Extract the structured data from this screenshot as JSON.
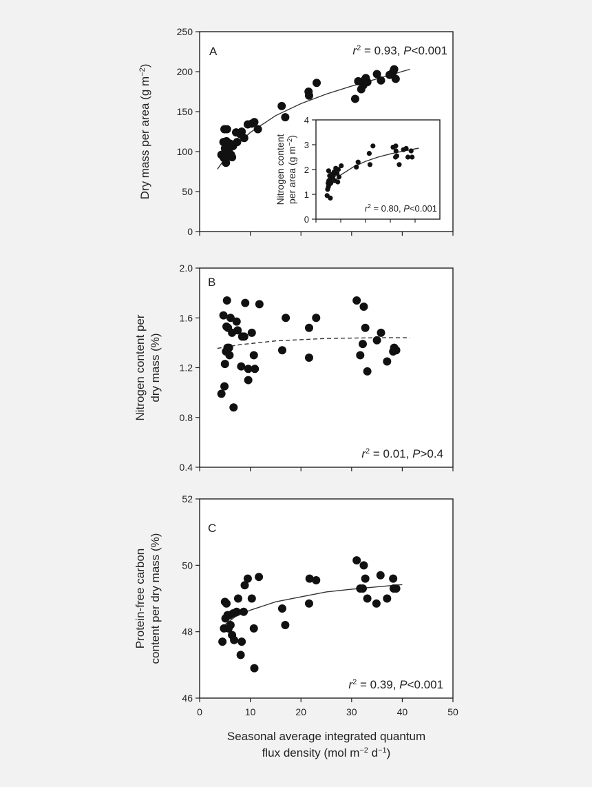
{
  "xaxis": {
    "label_line1": "Seasonal average integrated quantum",
    "label_line2": "flux density (mol m",
    "label_sup1": "−2",
    "label_mid": " d",
    "label_sup2": "−1",
    "label_end": ")",
    "range": [
      0,
      50
    ],
    "ticks": [
      0,
      10,
      20,
      30,
      40,
      50
    ]
  },
  "chart_data": [
    {
      "type": "scatter",
      "panel": "A",
      "ylabel": "Dry mass per area (g m−2)",
      "ylabel_text": "Dry mass per area (g m",
      "ylabel_sup": "−2",
      "ylabel_end": ")",
      "ylim": [
        0,
        250
      ],
      "yticks": [
        "0",
        "50",
        "100",
        "150",
        "200",
        "250"
      ],
      "stat": {
        "r2": "0.93",
        "p": "P<0.001"
      },
      "fit": {
        "style": "solid",
        "points": [
          [
            3.5,
            78
          ],
          [
            6,
            100
          ],
          [
            10,
            124
          ],
          [
            15,
            145
          ],
          [
            20,
            160
          ],
          [
            25,
            172
          ],
          [
            30,
            182
          ],
          [
            35,
            191
          ],
          [
            41.5,
            203
          ]
        ]
      },
      "points": [
        [
          4.3,
          96
        ],
        [
          4.5,
          95
        ],
        [
          4.7,
          112
        ],
        [
          4.8,
          92
        ],
        [
          4.9,
          128
        ],
        [
          5.0,
          104
        ],
        [
          5.1,
          90
        ],
        [
          5.2,
          86
        ],
        [
          5.3,
          113
        ],
        [
          5.4,
          128
        ],
        [
          5.5,
          100
        ],
        [
          5.6,
          108
        ],
        [
          5.8,
          103
        ],
        [
          6.0,
          110
        ],
        [
          6.2,
          96
        ],
        [
          6.4,
          93
        ],
        [
          6.6,
          107
        ],
        [
          7.2,
          124
        ],
        [
          7.4,
          112
        ],
        [
          8.0,
          122
        ],
        [
          8.3,
          125
        ],
        [
          8.8,
          117
        ],
        [
          9.5,
          134
        ],
        [
          10.3,
          135
        ],
        [
          10.8,
          137
        ],
        [
          11.5,
          128
        ],
        [
          16.2,
          157
        ],
        [
          16.9,
          143
        ],
        [
          21.5,
          175
        ],
        [
          21.6,
          170
        ],
        [
          23.1,
          186
        ],
        [
          30.7,
          166
        ],
        [
          31.3,
          188
        ],
        [
          31.9,
          178
        ],
        [
          32.3,
          183
        ],
        [
          32.6,
          190
        ],
        [
          32.8,
          192
        ],
        [
          33.1,
          187
        ],
        [
          35.0,
          197
        ],
        [
          35.8,
          189
        ],
        [
          37.5,
          196
        ],
        [
          38.2,
          200
        ],
        [
          38.4,
          203
        ],
        [
          38.7,
          191
        ]
      ]
    },
    {
      "type": "scatter",
      "panel": "A-inset",
      "ylabel": "Nitrogen content per area (g m−2)",
      "ylabel_line1": "Nitrogen content",
      "ylabel_line2": "per area (g m",
      "ylabel_sup": "−2",
      "ylabel_end": ")",
      "ylim": [
        0,
        4
      ],
      "yticks": [
        "0",
        "1",
        "2",
        "3",
        "4"
      ],
      "stat": {
        "r2": "0.80",
        "p": "P<0.001"
      },
      "fit": {
        "style": "solid",
        "points": [
          [
            4.5,
            1.15
          ],
          [
            7,
            1.5
          ],
          [
            10,
            1.78
          ],
          [
            15,
            2.1
          ],
          [
            20,
            2.33
          ],
          [
            25,
            2.5
          ],
          [
            30,
            2.63
          ],
          [
            35,
            2.74
          ],
          [
            41.5,
            2.86
          ]
        ]
      },
      "points": [
        [
          4.5,
          0.95
        ],
        [
          4.7,
          1.2
        ],
        [
          4.9,
          1.45
        ],
        [
          5.0,
          1.3
        ],
        [
          5.1,
          1.95
        ],
        [
          5.2,
          1.55
        ],
        [
          5.4,
          1.4
        ],
        [
          5.5,
          1.75
        ],
        [
          5.7,
          1.6
        ],
        [
          5.8,
          0.85
        ],
        [
          6.0,
          1.45
        ],
        [
          6.3,
          1.8
        ],
        [
          6.7,
          1.65
        ],
        [
          7.0,
          1.75
        ],
        [
          7.3,
          1.9
        ],
        [
          7.6,
          1.55
        ],
        [
          8.0,
          2.05
        ],
        [
          8.5,
          1.85
        ],
        [
          8.8,
          1.5
        ],
        [
          9.0,
          2.0
        ],
        [
          9.3,
          1.7
        ],
        [
          10.2,
          2.15
        ],
        [
          16.3,
          2.1
        ],
        [
          17.0,
          2.3
        ],
        [
          21.5,
          2.65
        ],
        [
          21.8,
          2.2
        ],
        [
          23.0,
          2.95
        ],
        [
          31.1,
          2.9
        ],
        [
          32.1,
          2.5
        ],
        [
          32.2,
          2.95
        ],
        [
          32.3,
          2.75
        ],
        [
          32.6,
          2.55
        ],
        [
          33.6,
          2.2
        ],
        [
          35.3,
          2.8
        ],
        [
          36.4,
          2.85
        ],
        [
          37.1,
          2.5
        ],
        [
          38.4,
          2.75
        ],
        [
          38.8,
          2.5
        ]
      ]
    },
    {
      "type": "scatter",
      "panel": "B",
      "ylabel": "Nitrogen content per dry mass (%)",
      "ylabel_line1": "Nitrogen content per",
      "ylabel_line2": "dry mass (%)",
      "ylim": [
        0.4,
        2.0
      ],
      "yticks": [
        "0.4",
        "0.8",
        "1.2",
        "1.6",
        "2.0"
      ],
      "stat": {
        "r2": "0.01",
        "p": "P>0.4"
      },
      "fit": {
        "style": "dashed",
        "points": [
          [
            3.5,
            1.355
          ],
          [
            8,
            1.385
          ],
          [
            15,
            1.415
          ],
          [
            25,
            1.435
          ],
          [
            35,
            1.44
          ],
          [
            41.5,
            1.44
          ]
        ]
      },
      "points": [
        [
          4.3,
          0.99
        ],
        [
          4.7,
          1.62
        ],
        [
          4.9,
          1.05
        ],
        [
          5.0,
          1.23
        ],
        [
          5.2,
          1.33
        ],
        [
          5.3,
          1.53
        ],
        [
          5.4,
          1.74
        ],
        [
          5.5,
          1.36
        ],
        [
          5.6,
          1.52
        ],
        [
          5.8,
          1.36
        ],
        [
          5.9,
          1.3
        ],
        [
          6.1,
          1.6
        ],
        [
          6.4,
          1.48
        ],
        [
          6.7,
          0.88
        ],
        [
          7.3,
          1.57
        ],
        [
          7.5,
          1.5
        ],
        [
          8.2,
          1.21
        ],
        [
          8.4,
          1.45
        ],
        [
          8.8,
          1.45
        ],
        [
          9.0,
          1.72
        ],
        [
          9.6,
          1.19
        ],
        [
          9.6,
          1.1
        ],
        [
          10.3,
          1.48
        ],
        [
          10.7,
          1.3
        ],
        [
          10.9,
          1.19
        ],
        [
          11.8,
          1.71
        ],
        [
          16.3,
          1.34
        ],
        [
          17.0,
          1.6
        ],
        [
          21.6,
          1.28
        ],
        [
          21.6,
          1.52
        ],
        [
          23.0,
          1.6
        ],
        [
          31.0,
          1.74
        ],
        [
          31.7,
          1.3
        ],
        [
          32.2,
          1.39
        ],
        [
          32.4,
          1.69
        ],
        [
          32.7,
          1.52
        ],
        [
          33.1,
          1.17
        ],
        [
          35.0,
          1.42
        ],
        [
          35.8,
          1.48
        ],
        [
          37.0,
          1.25
        ],
        [
          38.2,
          1.33
        ],
        [
          38.4,
          1.36
        ],
        [
          38.8,
          1.34
        ]
      ]
    },
    {
      "type": "scatter",
      "panel": "C",
      "ylabel": "Protein-free carbon content per dry mass (%)",
      "ylabel_line1": "Protein-free carbon",
      "ylabel_line2": "content per dry mass (%)",
      "ylim": [
        46,
        52
      ],
      "yticks": [
        "46",
        "48",
        "50",
        "52"
      ],
      "stat": {
        "r2": "0.39",
        "p": "P<0.001"
      },
      "fit": {
        "style": "solid",
        "points": [
          [
            4.5,
            48.15
          ],
          [
            7,
            48.45
          ],
          [
            10,
            48.65
          ],
          [
            15,
            48.9
          ],
          [
            20,
            49.05
          ],
          [
            25,
            49.2
          ],
          [
            30,
            49.28
          ],
          [
            35,
            49.35
          ],
          [
            40,
            49.42
          ]
        ]
      },
      "points": [
        [
          4.5,
          47.7
        ],
        [
          4.8,
          48.1
        ],
        [
          5.0,
          48.9
        ],
        [
          5.1,
          48.4
        ],
        [
          5.3,
          48.85
        ],
        [
          5.5,
          48.5
        ],
        [
          5.7,
          48.1
        ],
        [
          5.9,
          48.5
        ],
        [
          6.1,
          48.2
        ],
        [
          6.4,
          47.9
        ],
        [
          6.6,
          48.55
        ],
        [
          6.8,
          47.75
        ],
        [
          7.3,
          48.6
        ],
        [
          7.6,
          49.0
        ],
        [
          8.1,
          47.3
        ],
        [
          8.3,
          47.7
        ],
        [
          8.7,
          48.6
        ],
        [
          8.9,
          49.4
        ],
        [
          9.5,
          49.6
        ],
        [
          10.3,
          49.0
        ],
        [
          10.7,
          48.1
        ],
        [
          10.8,
          46.9
        ],
        [
          11.7,
          49.65
        ],
        [
          16.3,
          48.7
        ],
        [
          16.9,
          48.2
        ],
        [
          21.6,
          48.85
        ],
        [
          21.7,
          49.6
        ],
        [
          23.0,
          49.55
        ],
        [
          31.0,
          50.15
        ],
        [
          31.7,
          49.3
        ],
        [
          32.2,
          49.3
        ],
        [
          32.4,
          50.0
        ],
        [
          32.7,
          49.6
        ],
        [
          33.1,
          49.0
        ],
        [
          34.9,
          48.85
        ],
        [
          35.7,
          49.7
        ],
        [
          37.0,
          49.0
        ],
        [
          38.2,
          49.6
        ],
        [
          38.3,
          49.3
        ],
        [
          38.8,
          49.3
        ]
      ]
    }
  ],
  "labels": {
    "A": "A",
    "B": "B",
    "C": "C",
    "r2_prefix": "r",
    "r2_sup": "2",
    "r2_eq": " = "
  }
}
